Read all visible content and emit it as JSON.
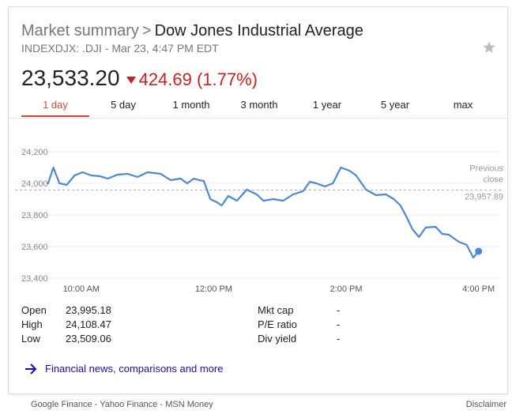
{
  "header": {
    "breadcrumb_root": "Market summary",
    "breadcrumb_sep": ">",
    "breadcrumb_current": "Dow Jones Industrial Average",
    "subtitle": "INDEXDJX: .DJI - Mar 23, 4:47 PM EDT"
  },
  "price": {
    "value": "23,533.20",
    "change": "424.69 (1.77%)",
    "direction": "down",
    "change_color": "#c5221f"
  },
  "tabs": [
    {
      "label": "1 day",
      "active": true
    },
    {
      "label": "5 day",
      "active": false
    },
    {
      "label": "1 month",
      "active": false
    },
    {
      "label": "3 month",
      "active": false
    },
    {
      "label": "1 year",
      "active": false
    },
    {
      "label": "5 year",
      "active": false
    },
    {
      "label": "max",
      "active": false
    }
  ],
  "chart_data": {
    "type": "line",
    "ylim": [
      23400,
      24200
    ],
    "yticks": [
      "24,200",
      "24,000",
      "23,800",
      "23,600",
      "23,400"
    ],
    "ytick_values": [
      24200,
      24000,
      23800,
      23600,
      23400
    ],
    "xticks": [
      "10:00 AM",
      "12:00 PM",
      "2:00 PM",
      "4:00 PM"
    ],
    "xtick_hours": [
      10,
      12,
      14,
      16
    ],
    "previous_close": 23957.89,
    "previous_close_label": "Previous close",
    "previous_close_value_label": "23,957.89",
    "line_color": "#4a88db",
    "series": [
      {
        "x": [
          9.5,
          9.58,
          9.67,
          9.78,
          9.9,
          10.02,
          10.15,
          10.28,
          10.4,
          10.55,
          10.7,
          10.85,
          11.0,
          11.1,
          11.2,
          11.35,
          11.5,
          11.6,
          11.7,
          11.78,
          11.85,
          11.95,
          12.05,
          12.12,
          12.22,
          12.35,
          12.5,
          12.65,
          12.75,
          12.9,
          13.05,
          13.2,
          13.35,
          13.45,
          13.55,
          13.68,
          13.8,
          13.92,
          14.05,
          14.15,
          14.3,
          14.45,
          14.6,
          14.72,
          14.82,
          14.92,
          15.0,
          15.1,
          15.2,
          15.35,
          15.45,
          15.55,
          15.7,
          15.82,
          15.92,
          16.0
        ],
        "y": [
          24000,
          24100,
          24000,
          23990,
          24050,
          24070,
          24050,
          24045,
          24030,
          24055,
          24060,
          24040,
          24070,
          24065,
          24060,
          24020,
          24030,
          24000,
          24030,
          24020,
          24015,
          23900,
          23880,
          23860,
          23920,
          23890,
          23960,
          23930,
          23890,
          23900,
          23890,
          23930,
          23950,
          24010,
          24000,
          23980,
          24000,
          24100,
          24080,
          24050,
          23960,
          23925,
          23930,
          23900,
          23860,
          23780,
          23710,
          23660,
          23720,
          23725,
          23680,
          23675,
          23630,
          23610,
          23530,
          23570
        ]
      }
    ]
  },
  "stats": [
    {
      "label": "Open",
      "value": "23,995.18"
    },
    {
      "label": "High",
      "value": "24,108.47"
    },
    {
      "label": "Low",
      "value": "23,509.06"
    },
    {
      "label": "Mkt cap",
      "value": "-"
    },
    {
      "label": "P/E ratio",
      "value": "-"
    },
    {
      "label": "Div yield",
      "value": "-"
    }
  ],
  "link": {
    "label": "Financial news, comparisons and more",
    "icon": "arrow-right-icon"
  },
  "footer": {
    "sources": "Google Finance - Yahoo Finance - MSN Money",
    "disclaimer": "Disclaimer"
  }
}
